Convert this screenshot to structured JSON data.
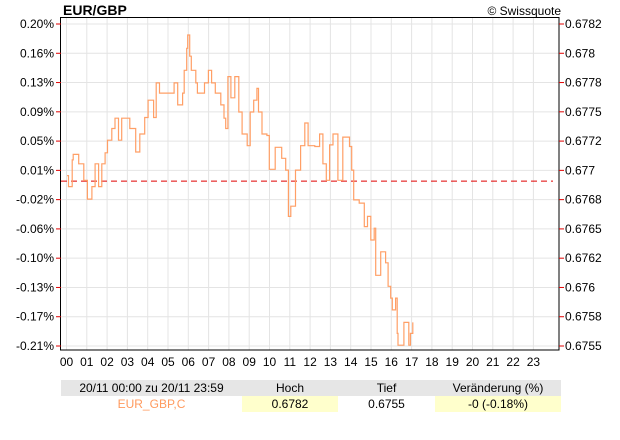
{
  "header": {
    "title": "EUR/GBP",
    "copyright": "© Swissquote"
  },
  "colors": {
    "series": "#ff9f66",
    "title": "#ff9a5e",
    "reference_line": "#e00000",
    "tick": "#e00000",
    "grid": "#e4e4e4",
    "highlight": "#ffffcc",
    "table_header": "#e6e6e6"
  },
  "chart_data": {
    "type": "line",
    "line_style": "step",
    "x_unit": "hour",
    "xlim": [
      0,
      24
    ],
    "x_ticks": [
      "00",
      "01",
      "02",
      "03",
      "04",
      "05",
      "06",
      "07",
      "08",
      "09",
      "10",
      "11",
      "12",
      "13",
      "14",
      "15",
      "16",
      "17",
      "18",
      "19",
      "20",
      "21",
      "22",
      "23"
    ],
    "y_left_ticks": [
      "0.20%",
      "0.16%",
      "0.13%",
      "0.09%",
      "0.05%",
      "0.01%",
      "-0.02%",
      "-0.06%",
      "-0.10%",
      "-0.13%",
      "-0.17%",
      "-0.21%"
    ],
    "y_right_ticks": [
      "0.6782",
      "0.678",
      "0.6778",
      "0.6775",
      "0.6772",
      "0.677",
      "0.6768",
      "0.6765",
      "0.6762",
      "0.676",
      "0.6758",
      "0.6755"
    ],
    "ylim_percent": [
      -0.21,
      0.2
    ],
    "ylim_price": [
      0.6755,
      0.6782
    ],
    "reference_line_percent": 0,
    "grid": true,
    "points": [
      [
        0.03,
        0.007
      ],
      [
        0.1,
        -0.007
      ],
      [
        0.28,
        0.027
      ],
      [
        0.33,
        0.034
      ],
      [
        0.6,
        0.022
      ],
      [
        0.85,
        0.001
      ],
      [
        1.03,
        -0.023
      ],
      [
        1.25,
        -0.007
      ],
      [
        1.41,
        0.022
      ],
      [
        1.58,
        -0.007
      ],
      [
        1.74,
        0.022
      ],
      [
        1.9,
        0.036
      ],
      [
        2.02,
        0.052
      ],
      [
        2.23,
        0.067
      ],
      [
        2.39,
        0.08
      ],
      [
        2.56,
        0.052
      ],
      [
        2.72,
        0.08
      ],
      [
        3.12,
        0.067
      ],
      [
        3.41,
        0.037
      ],
      [
        3.61,
        0.06
      ],
      [
        3.85,
        0.081
      ],
      [
        4.02,
        0.103
      ],
      [
        4.29,
        0.081
      ],
      [
        4.42,
        0.125
      ],
      [
        4.58,
        0.112
      ],
      [
        5.23,
        0.112
      ],
      [
        5.3,
        0.125
      ],
      [
        5.48,
        0.097
      ],
      [
        5.72,
        0.112
      ],
      [
        5.8,
        0.141
      ],
      [
        5.92,
        0.169
      ],
      [
        5.97,
        0.186
      ],
      [
        6.07,
        0.159
      ],
      [
        6.15,
        0.141
      ],
      [
        6.37,
        0.125
      ],
      [
        6.45,
        0.112
      ],
      [
        6.7,
        0.112
      ],
      [
        6.8,
        0.125
      ],
      [
        6.99,
        0.141
      ],
      [
        7.15,
        0.125
      ],
      [
        7.33,
        0.112
      ],
      [
        7.6,
        0.097
      ],
      [
        7.76,
        0.08
      ],
      [
        7.84,
        0.067
      ],
      [
        7.95,
        0.133
      ],
      [
        8.1,
        0.106
      ],
      [
        8.29,
        0.133
      ],
      [
        8.49,
        0.088
      ],
      [
        8.65,
        0.06
      ],
      [
        8.9,
        0.045
      ],
      [
        9.05,
        0.088
      ],
      [
        9.22,
        0.103
      ],
      [
        9.38,
        0.118
      ],
      [
        9.46,
        0.088
      ],
      [
        9.63,
        0.06
      ],
      [
        9.87,
        0.058
      ],
      [
        9.99,
        0.015
      ],
      [
        10.28,
        0.043
      ],
      [
        10.6,
        0.029
      ],
      [
        10.8,
        0.014
      ],
      [
        10.93,
        -0.045
      ],
      [
        11.05,
        -0.032
      ],
      [
        11.28,
        0.014
      ],
      [
        11.53,
        0.045
      ],
      [
        11.74,
        0.074
      ],
      [
        11.9,
        0.045
      ],
      [
        12.23,
        0.044
      ],
      [
        12.47,
        0.06
      ],
      [
        12.63,
        0.022
      ],
      [
        12.8,
        0.001
      ],
      [
        12.96,
        0.046
      ],
      [
        13.13,
        0.06
      ],
      [
        13.37,
        0.001
      ],
      [
        13.61,
        0.056
      ],
      [
        13.94,
        0.044
      ],
      [
        14.05,
        0.014
      ],
      [
        14.15,
        -0.024
      ],
      [
        14.42,
        -0.028
      ],
      [
        14.67,
        -0.058
      ],
      [
        14.83,
        -0.045
      ],
      [
        14.99,
        -0.075
      ],
      [
        15.16,
        -0.06
      ],
      [
        15.23,
        -0.12
      ],
      [
        15.48,
        -0.09
      ],
      [
        15.72,
        -0.104
      ],
      [
        15.84,
        -0.134
      ],
      [
        15.97,
        -0.149
      ],
      [
        16.05,
        -0.164
      ],
      [
        16.21,
        -0.149
      ],
      [
        16.29,
        -0.194
      ],
      [
        16.33,
        -0.209
      ],
      [
        16.62,
        -0.18
      ],
      [
        16.86,
        -0.209
      ],
      [
        16.94,
        -0.194
      ],
      [
        17.06,
        -0.18
      ]
    ]
  },
  "table": {
    "range": "20/11 00:00 zu 20/11 23:59",
    "headers": [
      "Hoch",
      "Tief",
      "Veränderung (%)"
    ],
    "symbol": "EUR_GBP,C",
    "high": "0.6782",
    "low": "0.6755",
    "change": "-0 (-0.18%)"
  }
}
